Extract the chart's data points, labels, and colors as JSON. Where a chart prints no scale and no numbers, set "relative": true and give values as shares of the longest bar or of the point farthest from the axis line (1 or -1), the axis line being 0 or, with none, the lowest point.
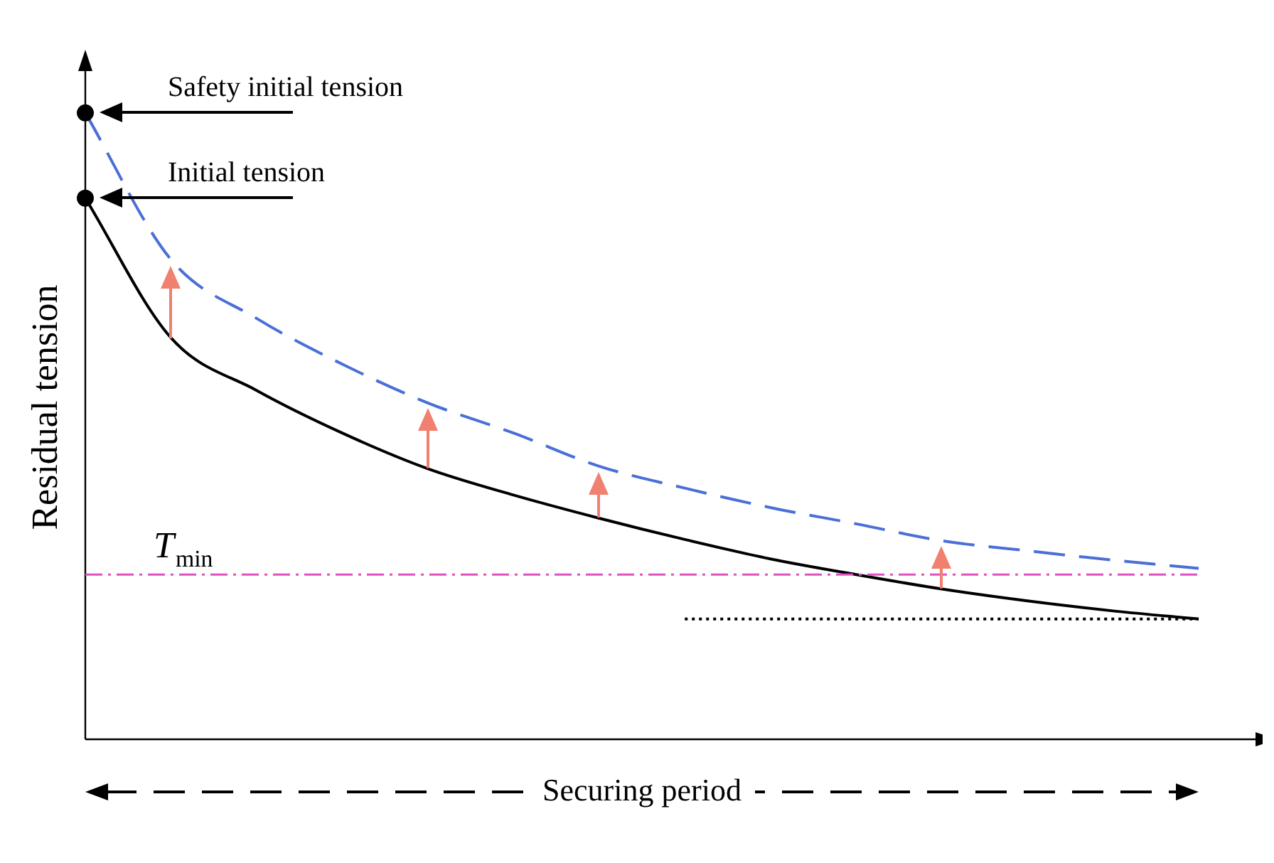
{
  "chart_data": {
    "type": "line",
    "relative": true,
    "xlabel": "Securing period",
    "ylabel": "Residual tension",
    "categories": [
      null,
      null,
      null,
      null,
      null,
      null,
      null,
      null,
      null,
      null,
      null,
      null,
      null,
      null
    ],
    "series": [
      {
        "color": "#000000",
        "line_style": "solid",
        "values": [
          0.864,
          0.641,
          0.557,
          0.489,
          0.432,
          0.39,
          0.353,
          0.319,
          0.288,
          0.263,
          0.24,
          0.221,
          0.205,
          0.192
        ]
      },
      {
        "color": "#4a6fd6",
        "line_style": "dashed",
        "values": [
          1.0,
          0.766,
          0.672,
          0.599,
          0.537,
          0.489,
          0.436,
          0.401,
          0.37,
          0.344,
          0.317,
          0.301,
          0.286,
          0.273
        ]
      },
      {
        "color": "#000000",
        "line_style": "dotted",
        "values": [
          null,
          null,
          null,
          null,
          null,
          null,
          null,
          0.192,
          0.192,
          0.192,
          0.192,
          0.192,
          0.192,
          0.192
        ]
      }
    ],
    "ref_lines": [
      {
        "axis": "y",
        "value": 0.263,
        "label": "T$_{min}$",
        "color": "#e050c0",
        "line_style": "dashed"
      }
    ],
    "annotations": [
      "Safety initial tension",
      "Initial tension"
    ]
  }
}
